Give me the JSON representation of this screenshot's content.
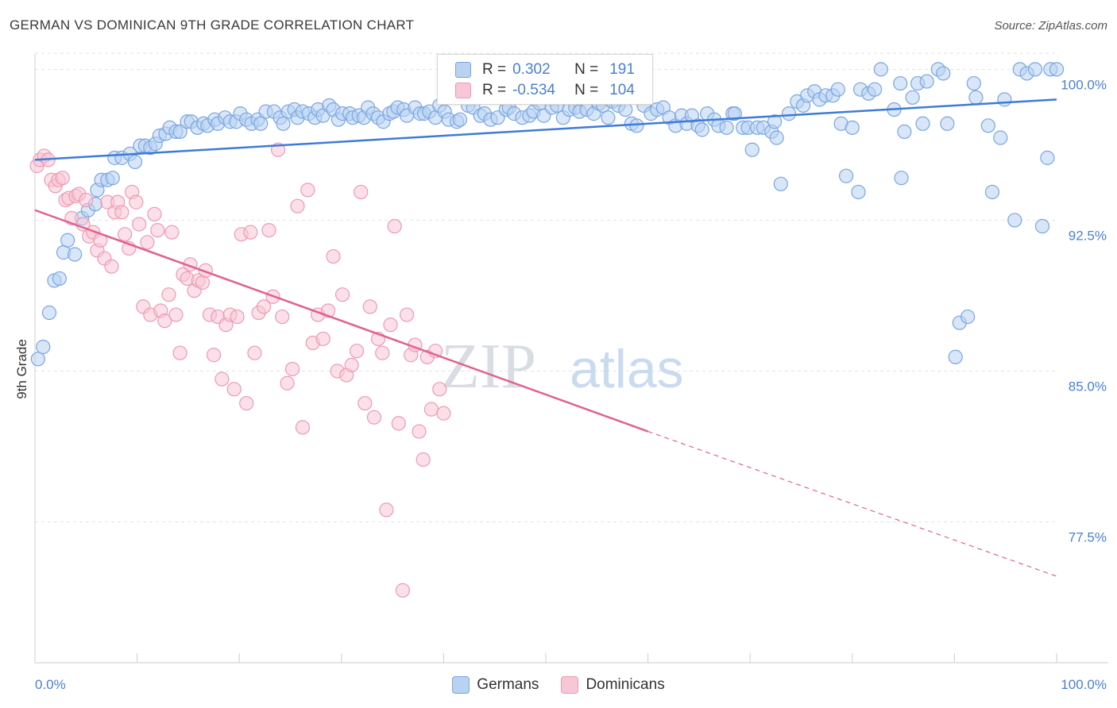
{
  "title": "GERMAN VS DOMINICAN 9TH GRADE CORRELATION CHART",
  "source": "Source: ZipAtlas.com",
  "watermark": {
    "zip": "ZIP",
    "atlas": "atlas"
  },
  "legend": {
    "rows": [
      {
        "r_label": "R =",
        "r_value": "0.302",
        "n_label": "N =",
        "n_value": "191",
        "color": "#4a7fd4"
      },
      {
        "r_label": "R =",
        "r_value": "-0.534",
        "n_label": "N =",
        "n_value": "104",
        "color": "#e0628f"
      }
    ]
  },
  "bottom_legend": [
    {
      "label": "Germans",
      "fill": "#b8d2f2",
      "stroke": "#7aa6e0"
    },
    {
      "label": "Dominicans",
      "fill": "#f8c7d6",
      "stroke": "#ec9ab5"
    }
  ],
  "chart_data": {
    "type": "scatter",
    "title": "GERMAN VS DOMINICAN 9TH GRADE CORRELATION CHART",
    "xlabel": "",
    "ylabel": "9th Grade",
    "xlim": [
      0,
      100
    ],
    "ylim": [
      70.5,
      101.0
    ],
    "x_tick_labels": [
      "0.0%",
      "100.0%"
    ],
    "y_ticks": [
      77.5,
      85.0,
      92.5,
      100.0
    ],
    "y_tick_labels": [
      "77.5%",
      "85.0%",
      "92.5%",
      "100.0%"
    ],
    "grid": true,
    "series": [
      {
        "name": "Germans",
        "color": "#4a7fd4",
        "fill": "#b8d2f2",
        "trend": {
          "x": [
            0,
            100
          ],
          "y": [
            95.5,
            98.5
          ]
        },
        "points": [
          [
            0.3,
            85.6
          ],
          [
            0.8,
            86.2
          ],
          [
            1.4,
            87.9
          ],
          [
            1.9,
            89.5
          ],
          [
            2.4,
            89.6
          ],
          [
            2.8,
            90.9
          ],
          [
            3.2,
            91.5
          ],
          [
            3.9,
            90.8
          ],
          [
            4.6,
            92.6
          ],
          [
            5.2,
            93.0
          ],
          [
            5.9,
            93.3
          ],
          [
            6.1,
            94.0
          ],
          [
            6.5,
            94.5
          ],
          [
            7.1,
            94.5
          ],
          [
            7.6,
            94.6
          ],
          [
            7.8,
            95.6
          ],
          [
            8.5,
            95.6
          ],
          [
            9.3,
            95.8
          ],
          [
            9.8,
            95.4
          ],
          [
            10.3,
            96.2
          ],
          [
            10.8,
            96.2
          ],
          [
            11.3,
            96.1
          ],
          [
            11.8,
            96.3
          ],
          [
            12.2,
            96.7
          ],
          [
            12.8,
            96.8
          ],
          [
            13.2,
            97.1
          ],
          [
            13.8,
            96.9
          ],
          [
            14.2,
            96.9
          ],
          [
            14.9,
            97.4
          ],
          [
            15.3,
            97.4
          ],
          [
            15.9,
            97.1
          ],
          [
            16.5,
            97.3
          ],
          [
            16.9,
            97.2
          ],
          [
            17.6,
            97.5
          ],
          [
            17.9,
            97.3
          ],
          [
            18.6,
            97.6
          ],
          [
            19.1,
            97.4
          ],
          [
            19.7,
            97.4
          ],
          [
            20.1,
            97.8
          ],
          [
            20.7,
            97.5
          ],
          [
            21.2,
            97.3
          ],
          [
            21.8,
            97.5
          ],
          [
            22.1,
            97.3
          ],
          [
            22.6,
            97.9
          ],
          [
            23.4,
            97.9
          ],
          [
            24.0,
            97.6
          ],
          [
            24.3,
            97.3
          ],
          [
            24.8,
            97.9
          ],
          [
            25.4,
            98.0
          ],
          [
            25.7,
            97.6
          ],
          [
            26.2,
            97.9
          ],
          [
            26.8,
            97.8
          ],
          [
            27.4,
            97.6
          ],
          [
            27.7,
            98.0
          ],
          [
            28.2,
            97.7
          ],
          [
            28.8,
            98.2
          ],
          [
            29.2,
            98.0
          ],
          [
            29.7,
            97.5
          ],
          [
            30.1,
            97.8
          ],
          [
            30.8,
            97.8
          ],
          [
            31.1,
            97.6
          ],
          [
            31.7,
            97.7
          ],
          [
            32.2,
            97.6
          ],
          [
            32.6,
            98.1
          ],
          [
            33.1,
            97.8
          ],
          [
            33.6,
            97.6
          ],
          [
            34.1,
            97.4
          ],
          [
            34.7,
            97.8
          ],
          [
            35.1,
            97.9
          ],
          [
            35.5,
            98.1
          ],
          [
            36.1,
            98.0
          ],
          [
            36.4,
            97.7
          ],
          [
            37.2,
            98.1
          ],
          [
            37.7,
            97.8
          ],
          [
            38.1,
            97.8
          ],
          [
            38.6,
            97.9
          ],
          [
            39.2,
            97.6
          ],
          [
            39.6,
            98.2
          ],
          [
            40.1,
            97.9
          ],
          [
            40.5,
            97.5
          ],
          [
            41.3,
            97.4
          ],
          [
            41.6,
            97.5
          ],
          [
            42.4,
            98.2
          ],
          [
            42.9,
            98.1
          ],
          [
            43.6,
            97.7
          ],
          [
            44.0,
            97.8
          ],
          [
            44.6,
            97.5
          ],
          [
            45.3,
            97.6
          ],
          [
            46.1,
            98.0
          ],
          [
            46.4,
            98.1
          ],
          [
            46.9,
            97.8
          ],
          [
            47.7,
            97.6
          ],
          [
            48.4,
            97.7
          ],
          [
            48.8,
            97.9
          ],
          [
            49.4,
            98.3
          ],
          [
            49.8,
            97.7
          ],
          [
            50.6,
            98.1
          ],
          [
            51.1,
            98.2
          ],
          [
            51.7,
            97.6
          ],
          [
            52.3,
            98.0
          ],
          [
            52.9,
            98.1
          ],
          [
            53.3,
            97.9
          ],
          [
            54.0,
            98.0
          ],
          [
            54.7,
            97.8
          ],
          [
            55.2,
            98.3
          ],
          [
            55.6,
            98.2
          ],
          [
            56.1,
            97.6
          ],
          [
            56.5,
            98.4
          ],
          [
            57.1,
            98.2
          ],
          [
            57.8,
            98.0
          ],
          [
            58.4,
            97.3
          ],
          [
            58.9,
            97.2
          ],
          [
            59.6,
            98.2
          ],
          [
            60.3,
            97.8
          ],
          [
            60.9,
            98.0
          ],
          [
            61.5,
            98.1
          ],
          [
            62.1,
            97.6
          ],
          [
            62.7,
            97.2
          ],
          [
            63.3,
            97.7
          ],
          [
            63.8,
            97.3
          ],
          [
            64.3,
            97.7
          ],
          [
            64.9,
            97.2
          ],
          [
            65.3,
            97.0
          ],
          [
            65.8,
            97.8
          ],
          [
            66.5,
            97.5
          ],
          [
            66.9,
            97.2
          ],
          [
            67.7,
            97.1
          ],
          [
            68.3,
            97.8
          ],
          [
            68.5,
            97.8
          ],
          [
            69.3,
            97.1
          ],
          [
            69.8,
            97.1
          ],
          [
            70.2,
            96.0
          ],
          [
            70.7,
            97.1
          ],
          [
            71.3,
            97.1
          ],
          [
            72.1,
            96.9
          ],
          [
            72.4,
            97.4
          ],
          [
            72.6,
            96.6
          ],
          [
            73.0,
            94.3
          ],
          [
            73.8,
            97.8
          ],
          [
            74.6,
            98.4
          ],
          [
            75.2,
            98.2
          ],
          [
            75.6,
            98.7
          ],
          [
            76.3,
            98.9
          ],
          [
            76.8,
            98.5
          ],
          [
            77.4,
            98.7
          ],
          [
            78.1,
            98.7
          ],
          [
            78.6,
            99.0
          ],
          [
            78.9,
            97.3
          ],
          [
            79.4,
            94.7
          ],
          [
            80.0,
            97.1
          ],
          [
            80.6,
            93.9
          ],
          [
            80.8,
            99.0
          ],
          [
            81.6,
            98.8
          ],
          [
            82.2,
            99.0
          ],
          [
            82.8,
            100.0
          ],
          [
            84.1,
            98.0
          ],
          [
            84.7,
            99.3
          ],
          [
            84.8,
            94.6
          ],
          [
            85.1,
            96.9
          ],
          [
            85.9,
            98.6
          ],
          [
            86.4,
            99.3
          ],
          [
            86.9,
            97.3
          ],
          [
            87.3,
            99.4
          ],
          [
            88.4,
            100.0
          ],
          [
            88.9,
            99.8
          ],
          [
            89.3,
            97.3
          ],
          [
            90.1,
            85.7
          ],
          [
            90.5,
            87.4
          ],
          [
            91.3,
            87.7
          ],
          [
            91.9,
            99.3
          ],
          [
            92.1,
            98.6
          ],
          [
            93.3,
            97.2
          ],
          [
            93.7,
            93.9
          ],
          [
            94.5,
            96.6
          ],
          [
            94.9,
            98.5
          ],
          [
            95.9,
            92.5
          ],
          [
            96.4,
            100.0
          ],
          [
            97.1,
            99.8
          ],
          [
            97.9,
            100.0
          ],
          [
            98.6,
            92.2
          ],
          [
            99.1,
            95.6
          ],
          [
            99.4,
            100.0
          ],
          [
            100.0,
            100.0
          ]
        ]
      },
      {
        "name": "Dominicans",
        "color": "#e0628f",
        "fill": "#f8c7d6",
        "trend": {
          "x": [
            0,
            60
          ],
          "y": [
            93.0,
            82.0
          ]
        },
        "trend_dashed": {
          "x": [
            60,
            100
          ],
          "y": [
            82.0,
            74.8
          ]
        },
        "points": [
          [
            0.2,
            95.2
          ],
          [
            0.5,
            95.5
          ],
          [
            0.9,
            95.7
          ],
          [
            1.3,
            95.5
          ],
          [
            1.6,
            94.5
          ],
          [
            2.0,
            94.2
          ],
          [
            2.3,
            94.5
          ],
          [
            2.7,
            94.6
          ],
          [
            3.0,
            93.5
          ],
          [
            3.3,
            93.6
          ],
          [
            3.6,
            92.6
          ],
          [
            4.0,
            93.7
          ],
          [
            4.3,
            93.8
          ],
          [
            4.7,
            92.3
          ],
          [
            5.0,
            93.5
          ],
          [
            5.3,
            91.7
          ],
          [
            5.7,
            91.9
          ],
          [
            6.1,
            91.0
          ],
          [
            6.4,
            91.5
          ],
          [
            6.8,
            90.6
          ],
          [
            7.1,
            93.4
          ],
          [
            7.5,
            90.2
          ],
          [
            7.8,
            92.9
          ],
          [
            8.1,
            93.4
          ],
          [
            8.5,
            92.9
          ],
          [
            8.8,
            91.8
          ],
          [
            9.2,
            91.1
          ],
          [
            9.5,
            93.9
          ],
          [
            9.9,
            93.4
          ],
          [
            10.2,
            92.3
          ],
          [
            10.6,
            88.2
          ],
          [
            11.0,
            91.4
          ],
          [
            11.3,
            87.8
          ],
          [
            11.7,
            92.8
          ],
          [
            12.0,
            92.0
          ],
          [
            12.3,
            88.0
          ],
          [
            12.7,
            87.5
          ],
          [
            13.1,
            88.8
          ],
          [
            13.4,
            91.9
          ],
          [
            13.8,
            87.8
          ],
          [
            14.2,
            85.9
          ],
          [
            14.5,
            89.8
          ],
          [
            14.9,
            89.6
          ],
          [
            15.2,
            90.3
          ],
          [
            15.6,
            89.0
          ],
          [
            16.0,
            89.5
          ],
          [
            16.4,
            89.4
          ],
          [
            16.7,
            90.0
          ],
          [
            17.1,
            87.8
          ],
          [
            17.5,
            85.8
          ],
          [
            17.9,
            87.7
          ],
          [
            18.3,
            84.6
          ],
          [
            18.7,
            87.3
          ],
          [
            19.1,
            87.8
          ],
          [
            19.5,
            84.1
          ],
          [
            19.8,
            87.7
          ],
          [
            20.2,
            91.8
          ],
          [
            20.7,
            83.4
          ],
          [
            21.1,
            91.9
          ],
          [
            21.5,
            85.9
          ],
          [
            21.9,
            87.9
          ],
          [
            22.4,
            88.2
          ],
          [
            22.9,
            92.0
          ],
          [
            23.3,
            88.7
          ],
          [
            23.8,
            96.0
          ],
          [
            24.2,
            87.7
          ],
          [
            24.7,
            84.4
          ],
          [
            25.2,
            85.1
          ],
          [
            25.7,
            93.2
          ],
          [
            26.2,
            82.2
          ],
          [
            26.7,
            94.0
          ],
          [
            27.2,
            86.4
          ],
          [
            27.7,
            87.8
          ],
          [
            28.2,
            86.6
          ],
          [
            28.7,
            88.0
          ],
          [
            29.2,
            90.7
          ],
          [
            29.6,
            85.0
          ],
          [
            30.1,
            88.8
          ],
          [
            30.5,
            84.8
          ],
          [
            31.0,
            85.3
          ],
          [
            31.5,
            86.0
          ],
          [
            31.9,
            93.9
          ],
          [
            32.3,
            83.4
          ],
          [
            32.8,
            88.2
          ],
          [
            33.2,
            82.7
          ],
          [
            33.6,
            86.6
          ],
          [
            34.0,
            85.9
          ],
          [
            34.4,
            78.1
          ],
          [
            34.8,
            87.3
          ],
          [
            35.2,
            92.2
          ],
          [
            35.6,
            82.4
          ],
          [
            36.0,
            74.1
          ],
          [
            36.4,
            87.8
          ],
          [
            36.8,
            85.8
          ],
          [
            37.2,
            86.3
          ],
          [
            37.6,
            82.0
          ],
          [
            38.0,
            80.6
          ],
          [
            38.4,
            85.7
          ],
          [
            38.8,
            83.1
          ],
          [
            39.2,
            86.0
          ],
          [
            39.6,
            84.1
          ],
          [
            40.0,
            82.9
          ]
        ]
      }
    ]
  }
}
